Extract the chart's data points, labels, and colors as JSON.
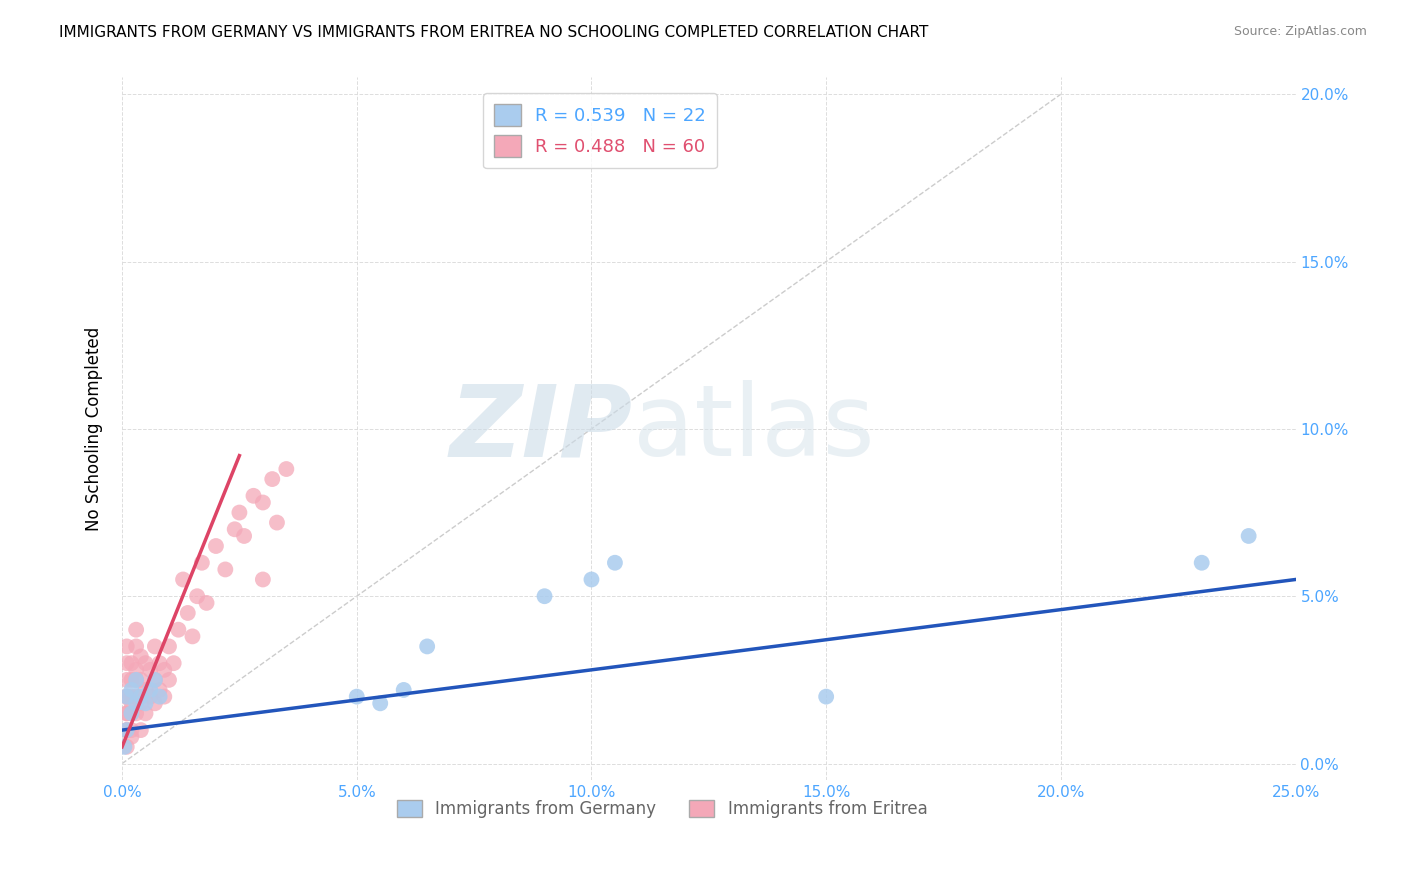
{
  "title": "IMMIGRANTS FROM GERMANY VS IMMIGRANTS FROM ERITREA NO SCHOOLING COMPLETED CORRELATION CHART",
  "source": "Source: ZipAtlas.com",
  "ylabel": "No Schooling Completed",
  "xlim": [
    0.0,
    0.25
  ],
  "ylim": [
    -0.005,
    0.205
  ],
  "germany_color": "#aaccee",
  "eritrea_color": "#f4a8b8",
  "germany_R": 0.539,
  "germany_N": 22,
  "eritrea_R": 0.488,
  "eritrea_N": 60,
  "germany_line_color": "#2255bb",
  "eritrea_line_color": "#dd4466",
  "diagonal_color": "#cccccc",
  "germany_x": [
    0.0005,
    0.001,
    0.001,
    0.002,
    0.002,
    0.003,
    0.003,
    0.004,
    0.005,
    0.006,
    0.007,
    0.008,
    0.05,
    0.055,
    0.06,
    0.065,
    0.09,
    0.1,
    0.105,
    0.15,
    0.23,
    0.24
  ],
  "germany_y": [
    0.005,
    0.01,
    0.02,
    0.015,
    0.022,
    0.018,
    0.025,
    0.02,
    0.018,
    0.022,
    0.025,
    0.02,
    0.02,
    0.018,
    0.022,
    0.035,
    0.05,
    0.055,
    0.06,
    0.02,
    0.06,
    0.068
  ],
  "eritrea_x": [
    0.001,
    0.001,
    0.001,
    0.001,
    0.001,
    0.001,
    0.001,
    0.001,
    0.001,
    0.001,
    0.002,
    0.002,
    0.002,
    0.002,
    0.002,
    0.002,
    0.002,
    0.003,
    0.003,
    0.003,
    0.003,
    0.003,
    0.003,
    0.004,
    0.004,
    0.004,
    0.004,
    0.005,
    0.005,
    0.005,
    0.006,
    0.006,
    0.007,
    0.007,
    0.007,
    0.008,
    0.008,
    0.009,
    0.009,
    0.01,
    0.01,
    0.011,
    0.012,
    0.013,
    0.014,
    0.015,
    0.016,
    0.017,
    0.018,
    0.02,
    0.022,
    0.024,
    0.025,
    0.026,
    0.028,
    0.03,
    0.03,
    0.032,
    0.033,
    0.035
  ],
  "eritrea_y": [
    0.005,
    0.01,
    0.015,
    0.02,
    0.025,
    0.03,
    0.035,
    0.02,
    0.015,
    0.01,
    0.008,
    0.015,
    0.02,
    0.025,
    0.03,
    0.01,
    0.018,
    0.015,
    0.02,
    0.028,
    0.035,
    0.04,
    0.025,
    0.01,
    0.018,
    0.025,
    0.032,
    0.015,
    0.022,
    0.03,
    0.02,
    0.028,
    0.018,
    0.025,
    0.035,
    0.022,
    0.03,
    0.02,
    0.028,
    0.025,
    0.035,
    0.03,
    0.04,
    0.055,
    0.045,
    0.038,
    0.05,
    0.06,
    0.048,
    0.065,
    0.058,
    0.07,
    0.075,
    0.068,
    0.08,
    0.078,
    0.055,
    0.085,
    0.072,
    0.088
  ],
  "eritrea_line_x": [
    0.0,
    0.025
  ],
  "eritrea_line_y": [
    0.005,
    0.092
  ],
  "germany_line_x": [
    0.0,
    0.25
  ],
  "germany_line_y": [
    0.01,
    0.055
  ]
}
